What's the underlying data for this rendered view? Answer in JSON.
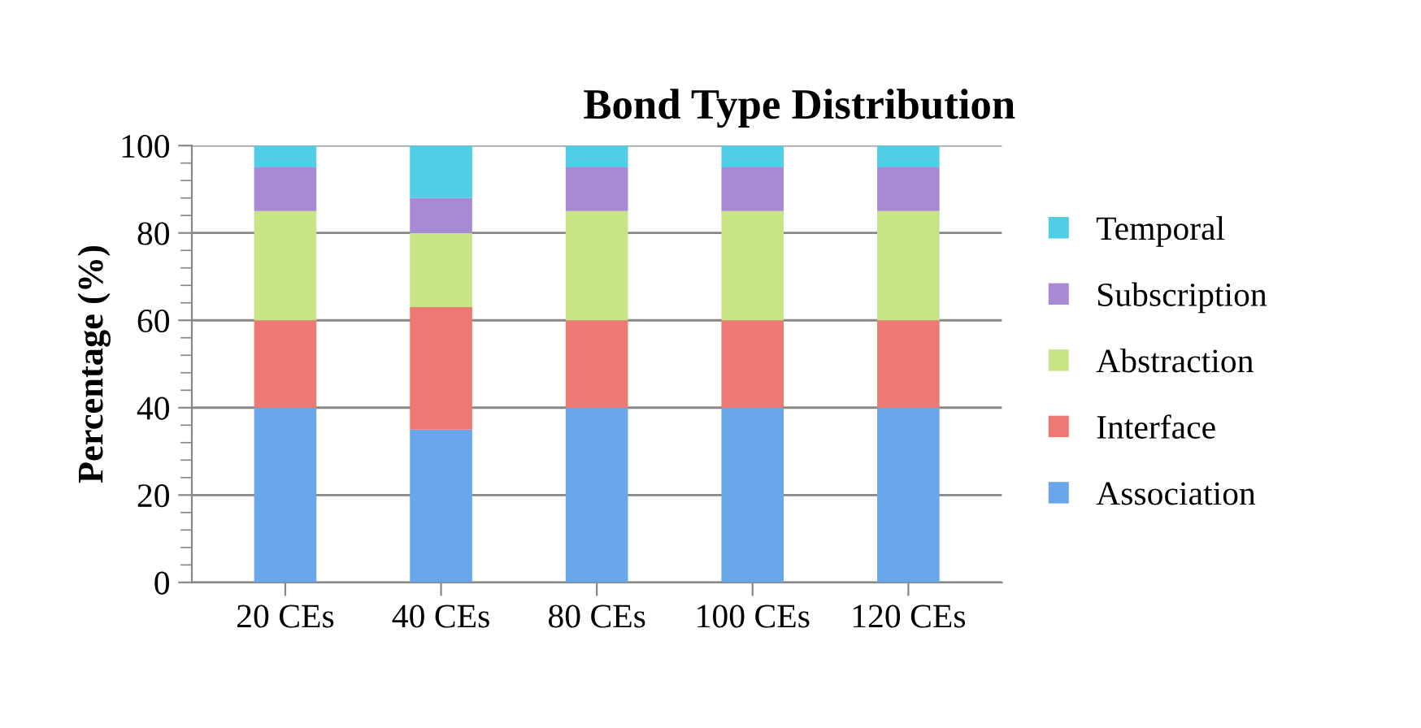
{
  "chart_data": {
    "type": "bar",
    "title": "Bond Type Distribution",
    "ylabel": "Percentage (%)",
    "stacked": true,
    "categories": [
      "20 CEs",
      "40 CEs",
      "80 CEs",
      "100 CEs",
      "120 CEs"
    ],
    "series": [
      {
        "name": "Association",
        "color": "#6aa6ea",
        "values": [
          40,
          35,
          40,
          40,
          40
        ]
      },
      {
        "name": "Interface",
        "color": "#ec7a72",
        "values": [
          20,
          28,
          20,
          20,
          20
        ]
      },
      {
        "name": "Abstraction",
        "color": "#c8e486",
        "values": [
          25,
          17,
          25,
          25,
          25
        ]
      },
      {
        "name": "Subscription",
        "color": "#a88ad4",
        "values": [
          10,
          8,
          10,
          10,
          10
        ]
      },
      {
        "name": "Temporal",
        "color": "#52cde6",
        "values": [
          5,
          12,
          5,
          5,
          5
        ]
      }
    ],
    "ylim": [
      0,
      100
    ],
    "yticks": [
      0,
      20,
      40,
      60,
      80,
      100
    ],
    "grid": "y",
    "legend": "right"
  }
}
